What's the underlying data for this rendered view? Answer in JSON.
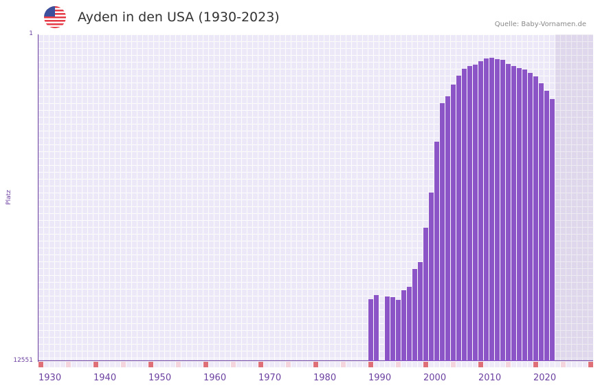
{
  "header": {
    "title": "Ayden in den USA (1930-2023)",
    "source": "Quelle: Baby-Vornamen.de",
    "flag_icon": "us-flag-icon"
  },
  "colors": {
    "bar": "#8b55c8",
    "axis": "#6b3fa0",
    "decade_marker": "#e07078",
    "half_decade_marker": "#f5d5dd"
  },
  "chart_data": {
    "type": "bar",
    "title": "Ayden in den USA (1930-2023)",
    "xlabel": "",
    "ylabel": "Platz",
    "ylim": [
      12551,
      1
    ],
    "y_inverted": true,
    "y_ticks": [
      "1",
      "12551"
    ],
    "x_ticks": [
      "1930",
      "1940",
      "1950",
      "1960",
      "1970",
      "1980",
      "1990",
      "2000",
      "2010",
      "2020"
    ],
    "x_range": [
      1930,
      2029
    ],
    "shaded_future_from": 2024,
    "grid": true,
    "years": [
      1990,
      1991,
      1993,
      1994,
      1995,
      1996,
      1997,
      1998,
      1999,
      2000,
      2001,
      2002,
      2003,
      2004,
      2005,
      2006,
      2007,
      2008,
      2009,
      2010,
      2011,
      2012,
      2013,
      2014,
      2015,
      2016,
      2017,
      2018,
      2019,
      2020,
      2021,
      2022,
      2023
    ],
    "values": [
      10173,
      10015,
      10067,
      10094,
      10200,
      9830,
      9698,
      9010,
      8746,
      7425,
      6078,
      4122,
      2643,
      2379,
      1930,
      1586,
      1322,
      1216,
      1164,
      1031,
      926,
      899,
      952,
      978,
      1137,
      1216,
      1295,
      1348,
      1481,
      1612,
      1877,
      2168,
      2484
    ]
  }
}
